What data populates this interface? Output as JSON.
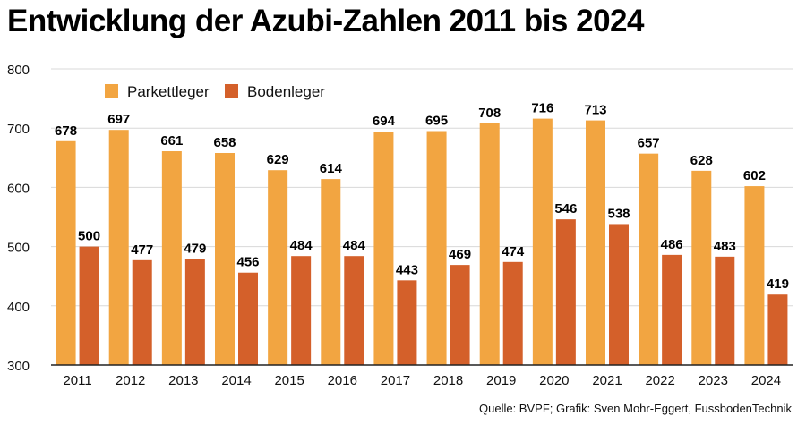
{
  "title": "Entwicklung der Azubi-Zahlen 2011 bis 2024",
  "source": "Quelle: BVPF; Grafik: Sven Mohr-Eggert, FussbodenTechnik",
  "chart_data": {
    "type": "bar",
    "title": "Entwicklung der Azubi-Zahlen 2011 bis 2024",
    "categories": [
      "2011",
      "2012",
      "2013",
      "2014",
      "2015",
      "2016",
      "2017",
      "2018",
      "2019",
      "2020",
      "2021",
      "2022",
      "2023",
      "2024"
    ],
    "series": [
      {
        "name": "Parkettleger",
        "color": "#f2a541",
        "values": [
          678,
          697,
          661,
          658,
          629,
          614,
          694,
          695,
          708,
          716,
          713,
          657,
          628,
          602
        ]
      },
      {
        "name": "Bodenleger",
        "color": "#d4602a",
        "values": [
          500,
          477,
          479,
          456,
          484,
          484,
          443,
          469,
          474,
          546,
          538,
          486,
          483,
          419
        ]
      }
    ],
    "ylim": [
      300,
      800
    ],
    "yticks": [
      300,
      400,
      500,
      600,
      700,
      800
    ],
    "grid": true,
    "legend": "top-left",
    "data_labels": true
  }
}
